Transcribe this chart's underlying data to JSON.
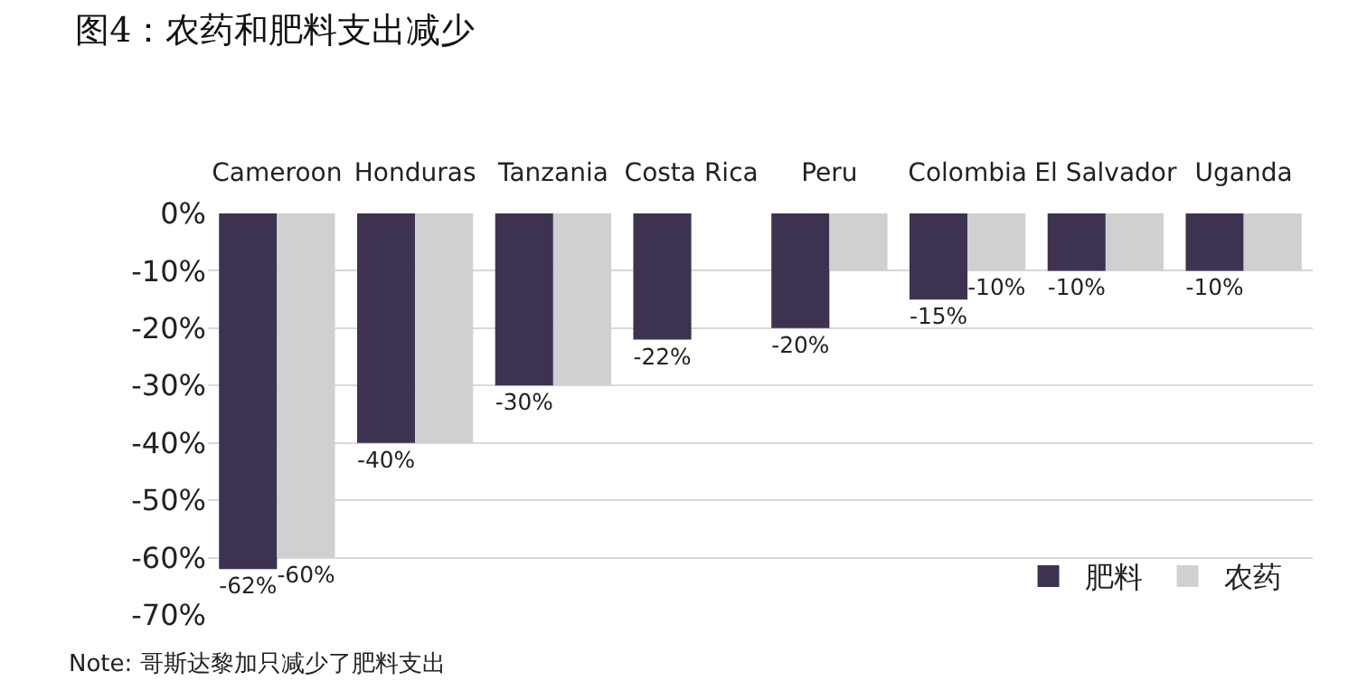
{
  "chart_data": {
    "type": "bar",
    "title": "图4：农药和肥料支出减少",
    "categories": [
      "Cameroon",
      "Honduras",
      "Tanzania",
      "Costa Rica",
      "Peru",
      "Colombia",
      "El Salvador",
      "Uganda"
    ],
    "series": [
      {
        "name": "肥料",
        "color": "#3d3350",
        "values": [
          -62,
          -40,
          -30,
          -22,
          -20,
          -15,
          -10,
          -10
        ],
        "value_labels": [
          "-62%",
          "-40%",
          "-30%",
          "-22%",
          "-20%",
          "-15%",
          "-10%",
          "-10%"
        ]
      },
      {
        "name": "农药",
        "color": "#d0d0d0",
        "values": [
          -60,
          -40,
          -30,
          null,
          -10,
          -10,
          -10,
          -10
        ],
        "value_labels": [
          "-60%",
          null,
          null,
          null,
          null,
          "-10%",
          null,
          null
        ]
      }
    ],
    "ylim": [
      -70,
      0
    ],
    "yticks": [
      {
        "value": 0,
        "label": "0%"
      },
      {
        "value": -10,
        "label": "-10%"
      },
      {
        "value": -20,
        "label": "-20%"
      },
      {
        "value": -30,
        "label": "-30%"
      },
      {
        "value": -40,
        "label": "-40%"
      },
      {
        "value": -50,
        "label": "-50%"
      },
      {
        "value": -60,
        "label": "-60%"
      },
      {
        "value": -70,
        "label": "-70%"
      }
    ],
    "grid": "y",
    "legend": "bottom right",
    "annotations": [
      "Note: 哥斯达黎加只减少了肥料支出"
    ]
  }
}
